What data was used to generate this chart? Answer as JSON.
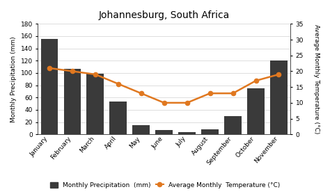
{
  "title": "Johannesburg, South Africa",
  "months": [
    "January",
    "February",
    "March",
    "April",
    "May",
    "June",
    "July",
    "August",
    "September",
    "October",
    "November"
  ],
  "precipitation": [
    155,
    107,
    99,
    53,
    15,
    7,
    4,
    8,
    30,
    75,
    120
  ],
  "temperature": [
    21,
    20,
    19,
    16,
    13,
    10,
    10,
    13,
    13,
    17,
    19
  ],
  "bar_color": "#3a3a3a",
  "line_color": "#e07820",
  "marker_color": "#e07820",
  "left_ylabel": "Monthly Precipitation (mm)",
  "right_ylabel": "Average Monthly Temperature (°C)",
  "ylim_precip": [
    0,
    180
  ],
  "ylim_temp": [
    0,
    35
  ],
  "yticks_precip": [
    0,
    20,
    40,
    60,
    80,
    100,
    120,
    140,
    160,
    180
  ],
  "yticks_temp": [
    0,
    5,
    10,
    15,
    20,
    25,
    30,
    35
  ],
  "legend_labels": [
    "Monthly Precipitation  (mm)",
    "Average Monthly  Temperature (°C)"
  ],
  "background_color": "#ffffff",
  "grid_color": "#d0d0d0"
}
